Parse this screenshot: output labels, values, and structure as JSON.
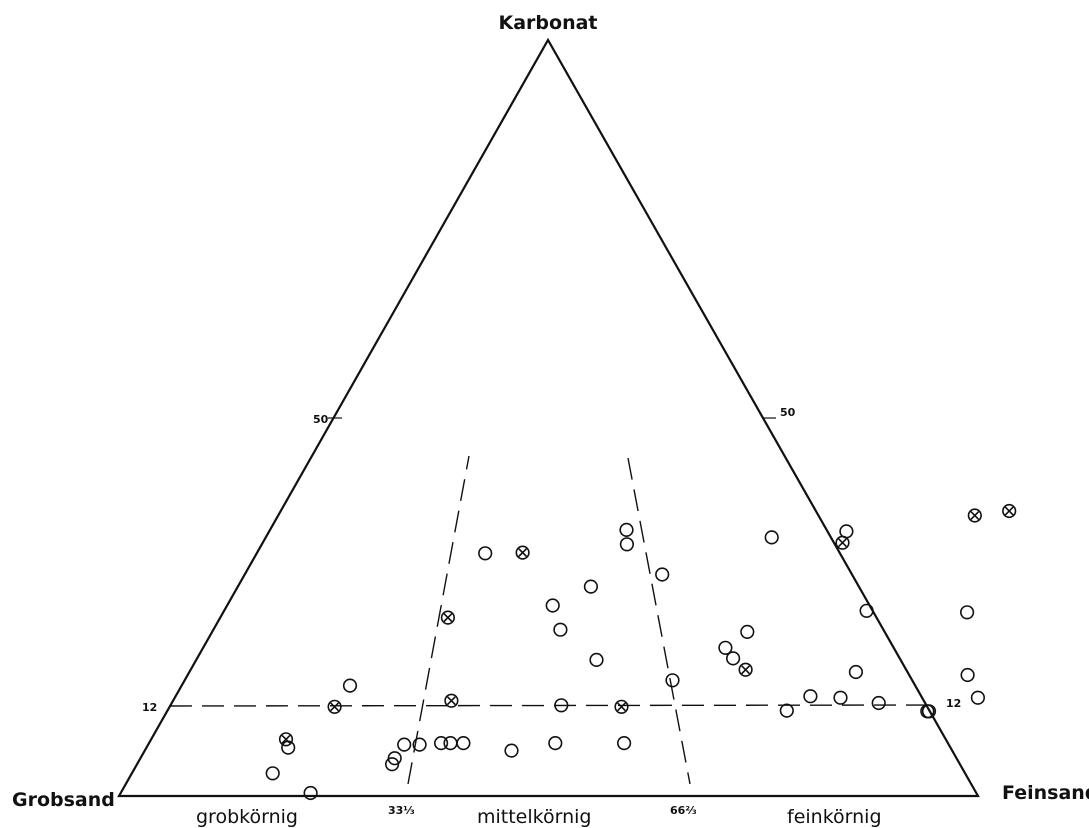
{
  "chart_data": {
    "type": "ternary-scatter",
    "title": "",
    "axes": {
      "top": "Karbonat",
      "left": "Grobsand",
      "right": "Feinsand"
    },
    "tick_labels": {
      "left_50": "50",
      "right_50": "50",
      "left_12": "12",
      "right_12": "12",
      "base_33": "33⅓",
      "base_66": "66⅔"
    },
    "zones": [
      "grobkörnig",
      "mittelkörnig",
      "feinkörnig"
    ],
    "reference_lines": {
      "karbonat_level": 12,
      "fein_fraction_boundaries": [
        33.33,
        66.67
      ]
    },
    "series": [
      {
        "marker": "open-circle",
        "points": [
          {
            "karbonat": 6.4,
            "feinsand": 16.5
          },
          {
            "karbonat": 3.0,
            "feinsand": 16.4
          },
          {
            "karbonat": 0.4,
            "feinsand": 22.1
          },
          {
            "karbonat": 6.8,
            "feinsand": 29.8
          },
          {
            "karbonat": 5.0,
            "feinsand": 29.6
          },
          {
            "karbonat": 4.2,
            "feinsand": 29.7
          },
          {
            "karbonat": 6.8,
            "feinsand": 31.6
          },
          {
            "karbonat": 7.0,
            "feinsand": 34.0
          },
          {
            "karbonat": 7.0,
            "feinsand": 35.1
          },
          {
            "karbonat": 7.0,
            "feinsand": 36.6
          },
          {
            "karbonat": 6.0,
            "feinsand": 42.7
          },
          {
            "karbonat": 12.0,
            "feinsand": 45.5
          },
          {
            "karbonat": 7.0,
            "feinsand": 47.3
          },
          {
            "karbonat": 7.0,
            "feinsand": 55.3
          },
          {
            "karbonat": 14.6,
            "feinsand": 19.6
          },
          {
            "karbonat": 32.1,
            "feinsand": 26.6
          },
          {
            "karbonat": 25.2,
            "feinsand": 37.9
          },
          {
            "karbonat": 35.2,
            "feinsand": 41.5
          },
          {
            "karbonat": 33.3,
            "feinsand": 42.5
          },
          {
            "karbonat": 27.7,
            "feinsand": 41.1
          },
          {
            "karbonat": 22.0,
            "feinsand": 40.4
          },
          {
            "karbonat": 29.3,
            "feinsand": 48.6
          },
          {
            "karbonat": 18.0,
            "feinsand": 46.6
          },
          {
            "karbonat": 34.2,
            "feinsand": 58.9
          },
          {
            "karbonat": 15.3,
            "feinsand": 56.8
          },
          {
            "karbonat": 19.6,
            "feinsand": 60.8
          },
          {
            "karbonat": 18.2,
            "feinsand": 62.4
          },
          {
            "karbonat": 21.7,
            "feinsand": 62.3
          },
          {
            "karbonat": 35.0,
            "feinsand": 67.2
          },
          {
            "karbonat": 24.5,
            "feinsand": 74.8
          },
          {
            "karbonat": 13.2,
            "feinsand": 73.9
          },
          {
            "karbonat": 11.3,
            "feinsand": 72.1
          },
          {
            "karbonat": 16.4,
            "feinsand": 77.6
          },
          {
            "karbonat": 13.0,
            "feinsand": 77.5
          },
          {
            "karbonat": 12.3,
            "feinsand": 82.3
          },
          {
            "karbonat": 24.3,
            "feinsand": 86.6
          },
          {
            "karbonat": 16.0,
            "feinsand": 90.8
          },
          {
            "karbonat": 11.2,
            "feinsand": 88.5
          },
          {
            "karbonat": 11.2,
            "feinsand": 88.7
          },
          {
            "karbonat": 13.0,
            "feinsand": 93.5
          }
        ]
      },
      {
        "marker": "crossed-circle",
        "points": [
          {
            "karbonat": 7.5,
            "feinsand": 15.7
          },
          {
            "karbonat": 11.8,
            "feinsand": 19.2
          },
          {
            "karbonat": 23.6,
            "feinsand": 26.5
          },
          {
            "karbonat": 32.2,
            "feinsand": 30.9
          },
          {
            "karbonat": 12.6,
            "feinsand": 32.4
          },
          {
            "karbonat": 11.8,
            "feinsand": 52.6
          },
          {
            "karbonat": 33.5,
            "feinsand": 67.5
          },
          {
            "karbonat": 16.7,
            "feinsand": 64.6
          },
          {
            "karbonat": 37.1,
            "feinsand": 81.1
          },
          {
            "karbonat": 37.7,
            "feinsand": 84.8
          }
        ]
      }
    ]
  }
}
